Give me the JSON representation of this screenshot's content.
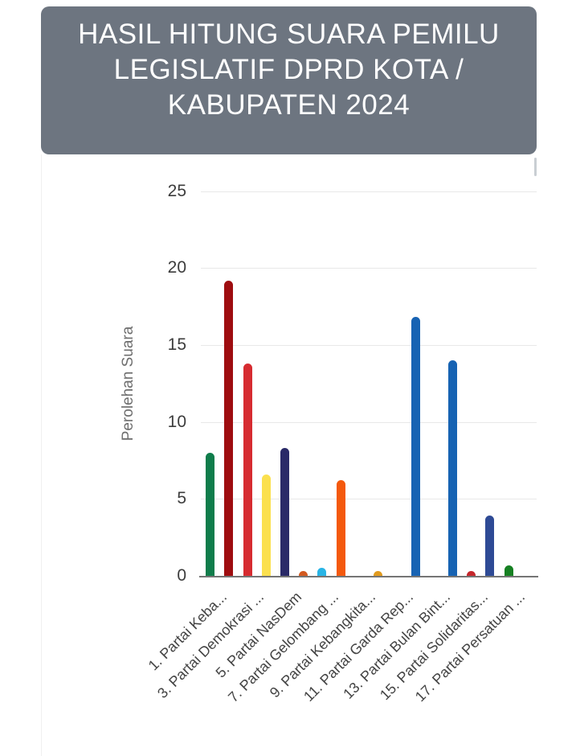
{
  "header": {
    "title": "HASIL HITUNG SUARA PEMILU LEGISLATIF DPRD KOTA / KABUPATEN 2024",
    "bg_color": "#6d7580",
    "text_color": "#ffffff"
  },
  "chart_data": {
    "type": "bar",
    "title": "HASIL HITUNG SUARA PEMILU LEGISLATIF DPRD KOTA / KABUPATEN 2024",
    "xlabel": "",
    "ylabel": "Perolehan Suara",
    "ylim": [
      0,
      25
    ],
    "yticks": [
      0,
      5,
      10,
      15,
      20,
      25
    ],
    "grid": true,
    "legend": "none",
    "bar_count": 18,
    "bars": [
      {
        "index": 1,
        "value": 8.0,
        "color": "#0f7d4b"
      },
      {
        "index": 2,
        "value": 19.2,
        "color": "#9e0d10"
      },
      {
        "index": 3,
        "value": 13.8,
        "color": "#d62b30"
      },
      {
        "index": 4,
        "value": 6.6,
        "color": "#fbe04e"
      },
      {
        "index": 5,
        "value": 8.3,
        "color": "#2a2a68"
      },
      {
        "index": 6,
        "value": 0.3,
        "color": "#d2591f"
      },
      {
        "index": 7,
        "value": 0.5,
        "color": "#28b4e6"
      },
      {
        "index": 8,
        "value": 6.2,
        "color": "#f4590c"
      },
      {
        "index": 9,
        "value": 0,
        "color": null
      },
      {
        "index": 10,
        "value": 0.3,
        "color": "#e09a1e"
      },
      {
        "index": 11,
        "value": 0,
        "color": null
      },
      {
        "index": 12,
        "value": 16.8,
        "color": "#1763b3"
      },
      {
        "index": 13,
        "value": 0,
        "color": null
      },
      {
        "index": 14,
        "value": 14.0,
        "color": "#1763b3"
      },
      {
        "index": 15,
        "value": 0.3,
        "color": "#c4262b"
      },
      {
        "index": 16,
        "value": 3.9,
        "color": "#2e4a95"
      },
      {
        "index": 17,
        "value": 0.7,
        "color": "#168022"
      },
      {
        "index": 18,
        "value": 0,
        "color": null
      }
    ],
    "x_tick_labels": [
      {
        "slot": 0,
        "text": "1. Partai Keba..."
      },
      {
        "slot": 2,
        "text": "3. Partai Demokrasi ..."
      },
      {
        "slot": 4,
        "text": "5. Partai NasDem"
      },
      {
        "slot": 6,
        "text": "7. Partai Gelombang ..."
      },
      {
        "slot": 8,
        "text": "9. Partai Kebangkita..."
      },
      {
        "slot": 10,
        "text": "11. Partai Garda Rep..."
      },
      {
        "slot": 12,
        "text": "13. Partai Bulan Bint..."
      },
      {
        "slot": 14,
        "text": "15. Partai Solidaritas..."
      },
      {
        "slot": 16,
        "text": "17. Partai Persatuan ..."
      }
    ]
  }
}
